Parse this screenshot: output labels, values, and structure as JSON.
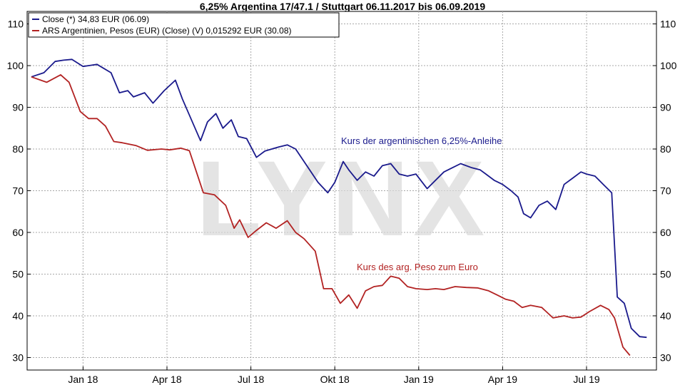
{
  "chart_data": {
    "type": "line",
    "title": "6,25% Argentina 17/47.1 / Stuttgart 06.11.2017 bis 06.09.2019",
    "watermark": "LYNX",
    "x_tick_labels": [
      "Jan 18",
      "Apr 18",
      "Jul 18",
      "Okt 18",
      "Jan 19",
      "Apr 19",
      "Jul 19"
    ],
    "x_tick_months": [
      2,
      5,
      8,
      11,
      14,
      17,
      20
    ],
    "x_range_months": [
      0,
      22.5
    ],
    "ylim": [
      27,
      113
    ],
    "y_ticks": [
      30,
      40,
      50,
      60,
      70,
      80,
      90,
      100,
      110
    ],
    "grid": true,
    "legend_position": "top-left",
    "series": [
      {
        "name": "Close (*) 34,83 EUR (06.09)",
        "color": "#1a1a8c",
        "annotation": "Kurs der argentinischen 6,25%-Anleihe",
        "x": [
          0.15,
          0.6,
          1.0,
          1.3,
          1.6,
          2.0,
          2.5,
          3.0,
          3.3,
          3.6,
          3.8,
          4.2,
          4.5,
          4.9,
          5.3,
          5.55,
          6.2,
          6.45,
          6.75,
          7.0,
          7.3,
          7.55,
          7.85,
          8.2,
          8.5,
          9.0,
          9.3,
          9.6,
          10.0,
          10.4,
          10.75,
          11.0,
          11.3,
          11.5,
          11.8,
          12.1,
          12.4,
          12.7,
          13.0,
          13.3,
          13.6,
          13.9,
          14.3,
          14.9,
          15.5,
          15.9,
          16.2,
          16.4,
          16.7,
          17.0,
          17.3,
          17.55,
          17.75,
          18.0,
          18.3,
          18.6,
          18.9,
          19.2,
          19.5,
          19.8,
          20.0,
          20.3,
          20.6,
          20.9,
          21.1,
          21.35,
          21.6,
          21.9,
          22.15
        ],
        "values": [
          97.3,
          98.3,
          101,
          101.3,
          101.5,
          99.8,
          100.3,
          98.3,
          93.5,
          94.0,
          92.5,
          93.5,
          91.0,
          94.0,
          96.5,
          92.0,
          82.0,
          86.5,
          88.5,
          85.0,
          87.0,
          83.0,
          82.5,
          78.0,
          79.5,
          80.5,
          81.0,
          80.0,
          76.0,
          72.0,
          69.5,
          72.0,
          77.0,
          75.0,
          72.5,
          74.5,
          73.5,
          76.0,
          76.5,
          74.0,
          73.5,
          74.0,
          70.5,
          74.5,
          76.5,
          75.5,
          75.0,
          74.0,
          72.5,
          71.5,
          70.0,
          68.5,
          64.5,
          63.5,
          66.5,
          67.5,
          65.5,
          71.5,
          73.0,
          74.5,
          74.0,
          73.5,
          71.5,
          69.5,
          44.5,
          43.0,
          37.0,
          35.0,
          34.83
        ]
      },
      {
        "name": "ARS Argentinien, Pesos (EUR) (Close) (V) 0,015292 EUR (30.08)",
        "color": "#b22222",
        "annotation": "Kurs des arg. Peso zum Euro",
        "x": [
          0.15,
          0.7,
          1.2,
          1.5,
          1.9,
          2.2,
          2.5,
          2.8,
          3.1,
          3.4,
          3.9,
          4.3,
          4.8,
          5.1,
          5.5,
          5.8,
          6.3,
          6.7,
          7.1,
          7.4,
          7.6,
          7.9,
          8.2,
          8.55,
          8.9,
          9.3,
          9.6,
          9.9,
          10.3,
          10.6,
          10.9,
          11.2,
          11.5,
          11.8,
          12.1,
          12.4,
          12.7,
          13.0,
          13.3,
          13.6,
          13.9,
          14.3,
          14.6,
          14.9,
          15.3,
          15.7,
          16.1,
          16.5,
          16.8,
          17.1,
          17.4,
          17.7,
          18.0,
          18.4,
          18.8,
          19.2,
          19.5,
          19.8,
          20.1,
          20.5,
          20.8,
          21.0,
          21.3,
          21.55
        ],
        "values": [
          97.3,
          96.0,
          97.8,
          96.0,
          89.0,
          87.3,
          87.3,
          85.5,
          81.8,
          81.5,
          80.8,
          79.7,
          80.0,
          79.8,
          80.2,
          79.6,
          69.5,
          69.0,
          66.5,
          61.0,
          63.0,
          58.8,
          60.5,
          62.3,
          61.0,
          62.8,
          60.0,
          58.5,
          55.5,
          46.5,
          46.5,
          43.0,
          45.0,
          41.8,
          46.0,
          47.0,
          47.3,
          49.5,
          49.0,
          47.0,
          46.5,
          46.3,
          46.5,
          46.3,
          47.0,
          46.8,
          46.7,
          46.0,
          45.0,
          44.0,
          43.5,
          42.0,
          42.5,
          42.0,
          39.5,
          40.0,
          39.5,
          39.7,
          41.0,
          42.5,
          41.5,
          39.5,
          32.5,
          30.5
        ]
      }
    ]
  }
}
